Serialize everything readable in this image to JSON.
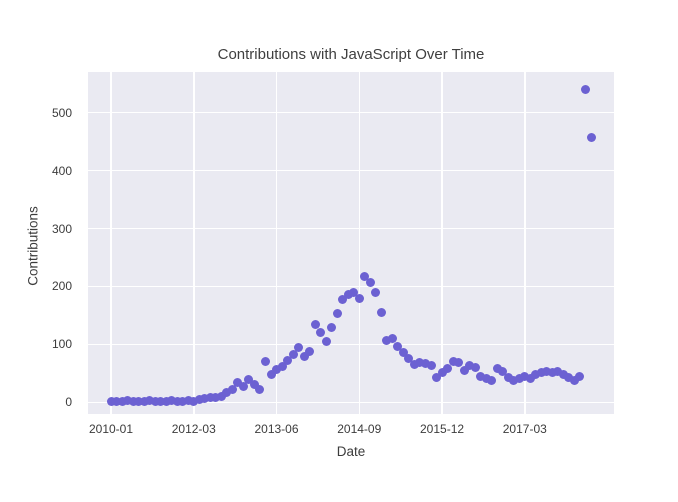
{
  "chart_data": {
    "type": "scatter",
    "title": "Contributions with JavaScript Over Time",
    "xlabel": "Date",
    "ylabel": "Contributions",
    "style": "seaborn-darkgrid",
    "grid": true,
    "legend": "none",
    "marker_color": "#6c61d2",
    "plot_bg_color": "#eaeaf2",
    "grid_color": "#ffffff",
    "text_color": "#3c3c3c",
    "ylim": [
      -20,
      570
    ],
    "y_ticks": [
      0,
      100,
      200,
      300,
      400,
      500
    ],
    "x_tick_labels": [
      "2010-01",
      "2012-03",
      "2013-06",
      "2014-09",
      "2015-12",
      "2017-03"
    ],
    "x_tick_point_indices": [
      0,
      15,
      30,
      45,
      60,
      75
    ],
    "x_axis_note": "categorical date axis, evenly spaced observations; dates between ticks are interpolated estimates",
    "dates": [
      "2010-01",
      "2010-03",
      "2010-04",
      "2010-06",
      "2010-08",
      "2010-10",
      "2010-11",
      "2011-01",
      "2011-03",
      "2011-05",
      "2011-06",
      "2011-08",
      "2011-10",
      "2011-12",
      "2012-01",
      "2012-03",
      "2012-04",
      "2012-05",
      "2012-06",
      "2012-07",
      "2012-08",
      "2012-09",
      "2012-10",
      "2012-11",
      "2012-12",
      "2013-01",
      "2013-02",
      "2013-03",
      "2013-04",
      "2013-05",
      "2013-06",
      "2013-07",
      "2013-08",
      "2013-09",
      "2013-10",
      "2013-11",
      "2013-12",
      "2014-01",
      "2014-02",
      "2014-03",
      "2014-04",
      "2014-05",
      "2014-06",
      "2014-07",
      "2014-08",
      "2014-09",
      "2014-10",
      "2014-11",
      "2014-12",
      "2015-01",
      "2015-02",
      "2015-03",
      "2015-04",
      "2015-05",
      "2015-06",
      "2015-07",
      "2015-08",
      "2015-09",
      "2015-10",
      "2015-11",
      "2015-12",
      "2016-01",
      "2016-02",
      "2016-03",
      "2016-04",
      "2016-05",
      "2016-06",
      "2016-07",
      "2016-08",
      "2016-09",
      "2016-10",
      "2016-11",
      "2016-12",
      "2017-01",
      "2017-02",
      "2017-03",
      "2017-04",
      "2017-05",
      "2017-06",
      "2017-07",
      "2017-08",
      "2017-09",
      "2017-10",
      "2017-11",
      "2017-12",
      "2018-01",
      "2018-02",
      "2018-03"
    ],
    "values": [
      1,
      2,
      1,
      3,
      1,
      2,
      1,
      3,
      2,
      1,
      2,
      3,
      2,
      1,
      3,
      2,
      5,
      6,
      8,
      9,
      10,
      17,
      22,
      34,
      28,
      40,
      31,
      22,
      71,
      48,
      57,
      62,
      72,
      83,
      95,
      79,
      88,
      134,
      120,
      105,
      129,
      154,
      177,
      186,
      190,
      179,
      217,
      207,
      190,
      155,
      107,
      110,
      96,
      86,
      76,
      66,
      69,
      67,
      64,
      43,
      52,
      59,
      71,
      69,
      55,
      64,
      60,
      45,
      41,
      38,
      59,
      53,
      43,
      37,
      41,
      45,
      42,
      48,
      51,
      53,
      51,
      53,
      49,
      43,
      37,
      44,
      539,
      457
    ]
  }
}
